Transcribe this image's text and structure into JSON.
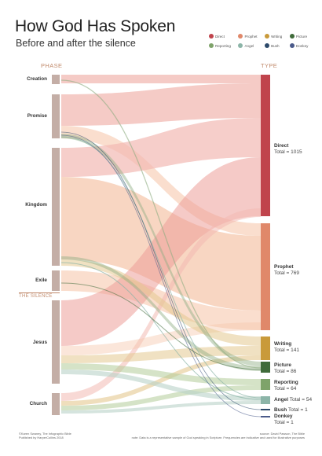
{
  "title": "How God Has Spoken",
  "subtitle": "Before and after the silence",
  "phase_heading": "PHASE",
  "type_heading": "TYPE",
  "silence_label": "THE SILENCE",
  "legend": [
    {
      "label": "Direct",
      "color": "#c0444c"
    },
    {
      "label": "Prophet",
      "color": "#e0886a"
    },
    {
      "label": "Writing",
      "color": "#c99a3a"
    },
    {
      "label": "Picture",
      "color": "#3f6b3a"
    },
    {
      "label": "Reporting",
      "color": "#7ea36a"
    },
    {
      "label": "Angel",
      "color": "#8cb5a8"
    },
    {
      "label": "Bush",
      "color": "#2d4a6a"
    },
    {
      "label": "Donkey",
      "color": "#4a5a8a"
    }
  ],
  "phases": [
    "Creation",
    "Promise",
    "Kingdom",
    "Exile",
    "Jesus",
    "Church"
  ],
  "types": [
    {
      "name": "Direct",
      "total": "Total = 1015",
      "color": "#c0444c"
    },
    {
      "name": "Prophet",
      "total": "Total = 769",
      "color": "#e0886a"
    },
    {
      "name": "Writing",
      "total": "Total = 141",
      "color": "#c99a3a"
    },
    {
      "name": "Picture",
      "total": "Total = 86",
      "color": "#3f6b3a"
    },
    {
      "name": "Reporting",
      "total": "Total = 64",
      "color": "#7ea36a"
    },
    {
      "name": "Angel",
      "total": "Total = 54",
      "color": "#8cb5a8"
    },
    {
      "name": "Bush",
      "total": "Total = 1",
      "color": "#2d4a6a"
    },
    {
      "name": "Donkey",
      "total": "Total = 1",
      "color": "#4a5a8a"
    }
  ],
  "footer_left": [
    "©Karen Swaney, The Infographic Bible",
    "Published by HarperCollins 2018"
  ],
  "footer_right": [
    "source: David Pawson, The Bible",
    "note: Data is a representative sample of God speaking in Scripture. Frequencies are indicative and used for illustrative purposes"
  ]
}
